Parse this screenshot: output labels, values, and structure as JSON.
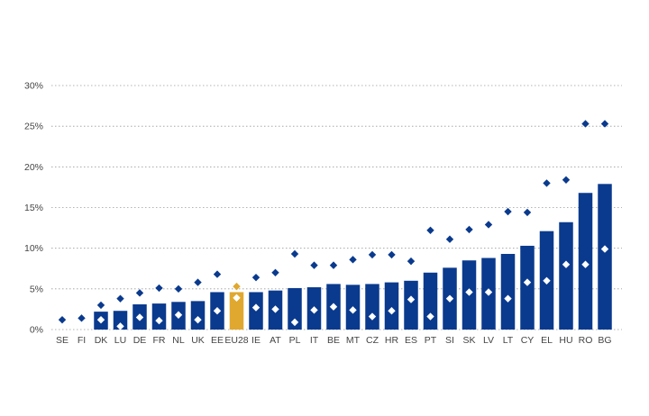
{
  "chart_data": {
    "type": "bar",
    "title": "",
    "xlabel": "",
    "ylabel": "",
    "ylim": [
      0,
      30
    ],
    "yticks": [
      "0%",
      "5%",
      "10%",
      "15%",
      "20%",
      "25%",
      "30%"
    ],
    "ytick_values": [
      0,
      5,
      10,
      15,
      20,
      25,
      30
    ],
    "grid": true,
    "legend": "none",
    "categories": [
      "SE",
      "FI",
      "DK",
      "LU",
      "DE",
      "FR",
      "NL",
      "UK",
      "EE",
      "EU28",
      "IE",
      "AT",
      "PL",
      "IT",
      "BE",
      "MT",
      "CZ",
      "HR",
      "ES",
      "PT",
      "SI",
      "SK",
      "LV",
      "LT",
      "CY",
      "EL",
      "HU",
      "RO",
      "BG"
    ],
    "highlight_category": "EU28",
    "series": [
      {
        "type": "bar",
        "values": [
          0,
          0,
          2.2,
          2.3,
          3.1,
          3.2,
          3.4,
          3.5,
          4.6,
          4.6,
          4.6,
          4.8,
          5.1,
          5.2,
          5.6,
          5.5,
          5.6,
          5.8,
          6.0,
          7.0,
          7.6,
          8.5,
          8.8,
          9.3,
          10.3,
          12.1,
          13.2,
          16.8,
          17.9
        ]
      },
      {
        "type": "marker-dark",
        "values": [
          1.2,
          1.4,
          3.0,
          3.8,
          4.5,
          5.1,
          5.0,
          5.8,
          6.8,
          5.3,
          6.4,
          7.0,
          9.3,
          7.9,
          7.9,
          8.6,
          9.2,
          9.2,
          8.4,
          12.2,
          11.1,
          12.3,
          12.9,
          14.5,
          14.4,
          18.0,
          18.4,
          25.3,
          25.3
        ]
      },
      {
        "type": "marker-light",
        "values": [
          null,
          null,
          1.2,
          0.4,
          1.5,
          1.1,
          1.8,
          1.2,
          2.3,
          3.9,
          2.7,
          2.5,
          0.9,
          2.4,
          2.8,
          2.4,
          1.6,
          2.3,
          3.7,
          1.6,
          3.8,
          4.6,
          4.6,
          3.8,
          5.8,
          6.0,
          8.0,
          8.0,
          9.9
        ]
      }
    ],
    "colors": {
      "bar": "#0a3a8e",
      "highlight": "#e0a82e",
      "marker_dark": "#0a3a8e",
      "marker_light": "#ffffff",
      "grid": "#9a9a9a",
      "text": "#444444"
    }
  }
}
